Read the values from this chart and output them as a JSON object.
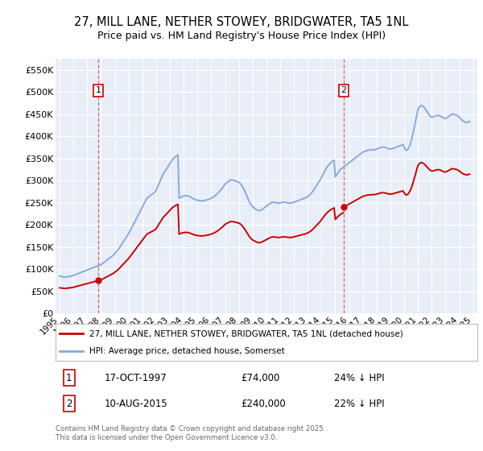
{
  "title": "27, MILL LANE, NETHER STOWEY, BRIDGWATER, TA5 1NL",
  "subtitle": "Price paid vs. HM Land Registry's House Price Index (HPI)",
  "title_fontsize": 10.5,
  "subtitle_fontsize": 9,
  "background_color": "#ffffff",
  "plot_bg_color": "#e8eef8",
  "legend_label_red": "27, MILL LANE, NETHER STOWEY, BRIDGWATER, TA5 1NL (detached house)",
  "legend_label_blue": "HPI: Average price, detached house, Somerset",
  "footnote": "Contains HM Land Registry data © Crown copyright and database right 2025.\nThis data is licensed under the Open Government Licence v3.0.",
  "sale1_x": 1997.79,
  "sale1_y": 74000,
  "sale2_x": 2015.61,
  "sale2_y": 240000,
  "hpi_x": [
    1995.0,
    1995.083,
    1995.167,
    1995.25,
    1995.333,
    1995.417,
    1995.5,
    1995.583,
    1995.667,
    1995.75,
    1995.833,
    1995.917,
    1996.0,
    1996.083,
    1996.167,
    1996.25,
    1996.333,
    1996.417,
    1996.5,
    1996.583,
    1996.667,
    1996.75,
    1996.833,
    1996.917,
    1997.0,
    1997.083,
    1997.167,
    1997.25,
    1997.333,
    1997.417,
    1997.5,
    1997.583,
    1997.667,
    1997.75,
    1997.833,
    1997.917,
    1998.0,
    1998.083,
    1998.167,
    1998.25,
    1998.333,
    1998.417,
    1998.5,
    1998.583,
    1998.667,
    1998.75,
    1998.833,
    1998.917,
    1999.0,
    1999.083,
    1999.167,
    1999.25,
    1999.333,
    1999.417,
    1999.5,
    1999.583,
    1999.667,
    1999.75,
    1999.833,
    1999.917,
    2000.0,
    2000.083,
    2000.167,
    2000.25,
    2000.333,
    2000.417,
    2000.5,
    2000.583,
    2000.667,
    2000.75,
    2000.833,
    2000.917,
    2001.0,
    2001.083,
    2001.167,
    2001.25,
    2001.333,
    2001.417,
    2001.5,
    2001.583,
    2001.667,
    2001.75,
    2001.833,
    2001.917,
    2002.0,
    2002.083,
    2002.167,
    2002.25,
    2002.333,
    2002.417,
    2002.5,
    2002.583,
    2002.667,
    2002.75,
    2002.833,
    2002.917,
    2003.0,
    2003.083,
    2003.167,
    2003.25,
    2003.333,
    2003.417,
    2003.5,
    2003.583,
    2003.667,
    2003.75,
    2003.833,
    2003.917,
    2004.0,
    2004.083,
    2004.167,
    2004.25,
    2004.333,
    2004.417,
    2004.5,
    2004.583,
    2004.667,
    2004.75,
    2004.833,
    2004.917,
    2005.0,
    2005.083,
    2005.167,
    2005.25,
    2005.333,
    2005.417,
    2005.5,
    2005.583,
    2005.667,
    2005.75,
    2005.833,
    2005.917,
    2006.0,
    2006.083,
    2006.167,
    2006.25,
    2006.333,
    2006.417,
    2006.5,
    2006.583,
    2006.667,
    2006.75,
    2006.833,
    2006.917,
    2007.0,
    2007.083,
    2007.167,
    2007.25,
    2007.333,
    2007.417,
    2007.5,
    2007.583,
    2007.667,
    2007.75,
    2007.833,
    2007.917,
    2008.0,
    2008.083,
    2008.167,
    2008.25,
    2008.333,
    2008.417,
    2008.5,
    2008.583,
    2008.667,
    2008.75,
    2008.833,
    2008.917,
    2009.0,
    2009.083,
    2009.167,
    2009.25,
    2009.333,
    2009.417,
    2009.5,
    2009.583,
    2009.667,
    2009.75,
    2009.833,
    2009.917,
    2010.0,
    2010.083,
    2010.167,
    2010.25,
    2010.333,
    2010.417,
    2010.5,
    2010.583,
    2010.667,
    2010.75,
    2010.833,
    2010.917,
    2011.0,
    2011.083,
    2011.167,
    2011.25,
    2011.333,
    2011.417,
    2011.5,
    2011.583,
    2011.667,
    2011.75,
    2011.833,
    2011.917,
    2012.0,
    2012.083,
    2012.167,
    2012.25,
    2012.333,
    2012.417,
    2012.5,
    2012.583,
    2012.667,
    2012.75,
    2012.833,
    2012.917,
    2013.0,
    2013.083,
    2013.167,
    2013.25,
    2013.333,
    2013.417,
    2013.5,
    2013.583,
    2013.667,
    2013.75,
    2013.833,
    2013.917,
    2014.0,
    2014.083,
    2014.167,
    2014.25,
    2014.333,
    2014.417,
    2014.5,
    2014.583,
    2014.667,
    2014.75,
    2014.833,
    2014.917,
    2015.0,
    2015.083,
    2015.167,
    2015.25,
    2015.333,
    2015.417,
    2015.5,
    2015.583,
    2015.667,
    2015.75,
    2015.833,
    2015.917,
    2016.0,
    2016.083,
    2016.167,
    2016.25,
    2016.333,
    2016.417,
    2016.5,
    2016.583,
    2016.667,
    2016.75,
    2016.833,
    2016.917,
    2017.0,
    2017.083,
    2017.167,
    2017.25,
    2017.333,
    2017.417,
    2017.5,
    2017.583,
    2017.667,
    2017.75,
    2017.833,
    2017.917,
    2018.0,
    2018.083,
    2018.167,
    2018.25,
    2018.333,
    2018.417,
    2018.5,
    2018.583,
    2018.667,
    2018.75,
    2018.833,
    2018.917,
    2019.0,
    2019.083,
    2019.167,
    2019.25,
    2019.333,
    2019.417,
    2019.5,
    2019.583,
    2019.667,
    2019.75,
    2019.833,
    2019.917,
    2020.0,
    2020.083,
    2020.167,
    2020.25,
    2020.333,
    2020.417,
    2020.5,
    2020.583,
    2020.667,
    2020.75,
    2020.833,
    2020.917,
    2021.0,
    2021.083,
    2021.167,
    2021.25,
    2021.333,
    2021.417,
    2021.5,
    2021.583,
    2021.667,
    2021.75,
    2021.833,
    2021.917,
    2022.0,
    2022.083,
    2022.167,
    2022.25,
    2022.333,
    2022.417,
    2022.5,
    2022.583,
    2022.667,
    2022.75,
    2022.833,
    2022.917,
    2023.0,
    2023.083,
    2023.167,
    2023.25,
    2023.333,
    2023.417,
    2023.5,
    2023.583,
    2023.667,
    2023.75,
    2023.833,
    2023.917,
    2024.0,
    2024.083,
    2024.167,
    2024.25,
    2024.333,
    2024.417,
    2024.5,
    2024.583,
    2024.667,
    2024.75
  ],
  "hpi_y": [
    84000,
    83500,
    83000,
    82500,
    82000,
    82000,
    82500,
    83000,
    83500,
    84000,
    84500,
    85000,
    86000,
    87000,
    88000,
    89000,
    90000,
    91000,
    92000,
    93000,
    94000,
    95000,
    96000,
    97000,
    98000,
    99000,
    100000,
    101000,
    102000,
    103000,
    104000,
    105000,
    106000,
    107000,
    108000,
    109000,
    110000,
    112000,
    114000,
    116000,
    118000,
    120000,
    122000,
    124000,
    126000,
    128000,
    130000,
    132000,
    135000,
    138000,
    141000,
    144000,
    148000,
    152000,
    156000,
    160000,
    164000,
    168000,
    172000,
    176000,
    180000,
    185000,
    190000,
    195000,
    200000,
    205000,
    210000,
    215000,
    220000,
    225000,
    230000,
    235000,
    240000,
    245000,
    250000,
    255000,
    260000,
    262000,
    264000,
    266000,
    268000,
    270000,
    272000,
    274000,
    278000,
    284000,
    290000,
    296000,
    302000,
    308000,
    314000,
    318000,
    322000,
    326000,
    330000,
    334000,
    338000,
    342000,
    346000,
    349000,
    352000,
    354000,
    356000,
    358000,
    260000,
    261500,
    263000,
    264000,
    265000,
    265500,
    265800,
    265500,
    265000,
    264000,
    262500,
    261000,
    259500,
    258000,
    257000,
    256000,
    255500,
    255000,
    254500,
    254000,
    254000,
    254500,
    255000,
    255500,
    256000,
    257000,
    258000,
    259000,
    260000,
    261500,
    263000,
    265000,
    267000,
    269500,
    272000,
    275000,
    278000,
    281000,
    284000,
    288000,
    292000,
    294000,
    296000,
    298000,
    300000,
    301000,
    301500,
    301000,
    300000,
    299000,
    298000,
    297000,
    296000,
    294000,
    291000,
    287000,
    282000,
    277000,
    271000,
    265000,
    259000,
    253000,
    248000,
    244000,
    241000,
    239000,
    237000,
    235000,
    233000,
    232000,
    232000,
    233000,
    234000,
    236000,
    238000,
    240000,
    242000,
    244000,
    246000,
    248000,
    249500,
    250500,
    251000,
    250500,
    250000,
    249500,
    249000,
    249000,
    249500,
    250000,
    250500,
    251000,
    251000,
    250500,
    250000,
    249500,
    249000,
    249000,
    249500,
    250000,
    251000,
    252000,
    253000,
    254000,
    255000,
    256000,
    257000,
    258000,
    259000,
    260000,
    261000,
    262000,
    264000,
    266000,
    268500,
    271000,
    274000,
    278000,
    282000,
    286000,
    290000,
    294000,
    298000,
    302000,
    307000,
    312000,
    317000,
    322000,
    327000,
    331000,
    334000,
    337000,
    340000,
    342000,
    344000,
    346000,
    308000,
    312000,
    316000,
    320000,
    323000,
    326000,
    328000,
    330000,
    332000,
    334000,
    336000,
    338000,
    340000,
    342000,
    344000,
    346000,
    348000,
    350000,
    352000,
    354000,
    356000,
    358000,
    360000,
    362000,
    364000,
    365000,
    366000,
    367000,
    368000,
    368500,
    369000,
    369000,
    369000,
    369000,
    369500,
    370000,
    371000,
    372000,
    373000,
    374000,
    375000,
    375500,
    375500,
    375000,
    374000,
    373000,
    372000,
    371000,
    371000,
    371500,
    372000,
    373000,
    374000,
    375000,
    376000,
    377000,
    378000,
    379000,
    380000,
    381000,
    375000,
    370000,
    368000,
    370000,
    374000,
    380000,
    388000,
    398000,
    410000,
    422000,
    435000,
    448000,
    460000,
    465000,
    468000,
    469000,
    468000,
    466000,
    463000,
    459000,
    455000,
    451000,
    447000,
    444000,
    443000,
    443000,
    444000,
    445000,
    446000,
    447000,
    447000,
    446000,
    445000,
    443000,
    441000,
    440000,
    440000,
    441000,
    443000,
    445000,
    447000,
    449000,
    450000,
    450000,
    449000,
    448000,
    447000,
    445000,
    443000,
    440000,
    437000,
    435000,
    433000,
    432000,
    431000,
    431000,
    432000,
    433000,
    434000,
    436000,
    438000,
    440000,
    442000,
    444000,
    446000,
    447000,
    448000,
    448000,
    447000,
    447000
  ],
  "ylim": [
    0,
    575000
  ],
  "xlim": [
    1994.7,
    2025.3
  ],
  "yticks": [
    0,
    50000,
    100000,
    150000,
    200000,
    250000,
    300000,
    350000,
    400000,
    450000,
    500000,
    550000
  ],
  "ytick_labels": [
    "£0",
    "£50K",
    "£100K",
    "£150K",
    "£200K",
    "£250K",
    "£300K",
    "£350K",
    "£400K",
    "£450K",
    "£500K",
    "£550K"
  ],
  "xtick_years": [
    1995,
    1996,
    1997,
    1998,
    1999,
    2000,
    2001,
    2002,
    2003,
    2004,
    2005,
    2006,
    2007,
    2008,
    2009,
    2010,
    2011,
    2012,
    2013,
    2014,
    2015,
    2016,
    2017,
    2018,
    2019,
    2020,
    2021,
    2022,
    2023,
    2024,
    2025
  ],
  "red_color": "#cc0000",
  "blue_color": "#88aadd",
  "dashed_color": "#dd4444",
  "grid_color": "#ffffff",
  "box_color": "#cc0000"
}
